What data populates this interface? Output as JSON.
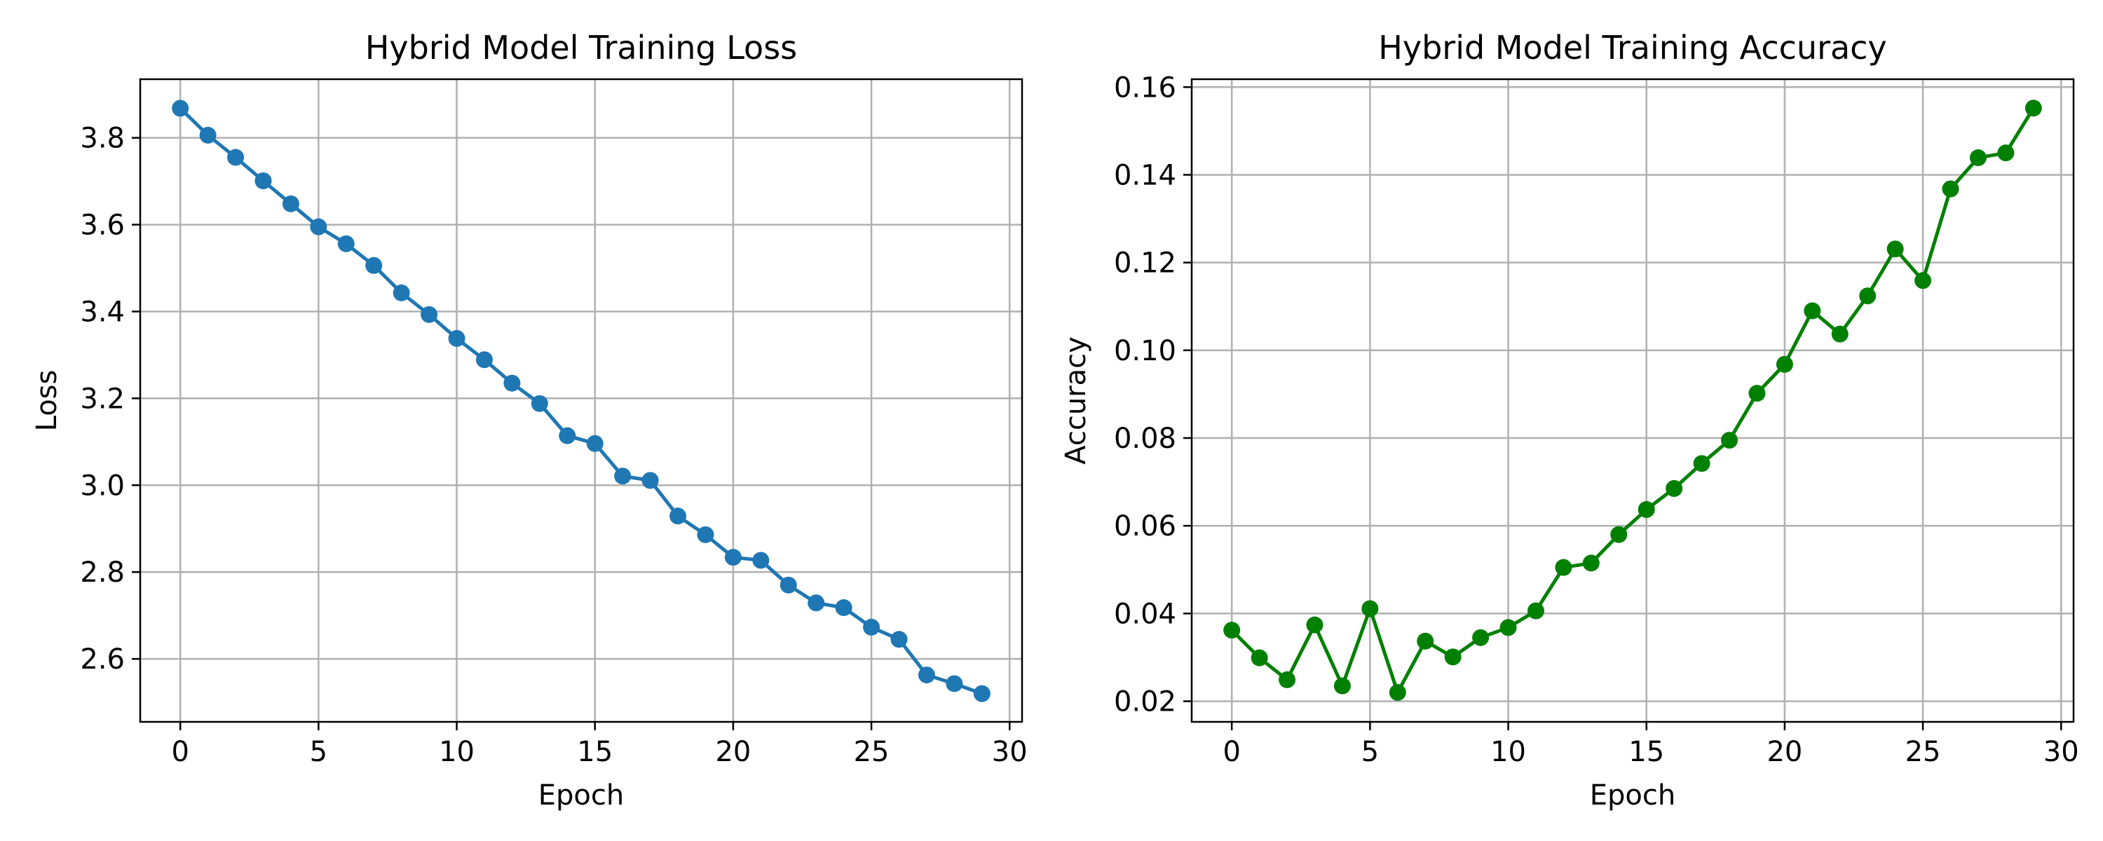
{
  "colors": {
    "loss": "#1f77b4",
    "accuracy": "#008000"
  },
  "chart_data": [
    {
      "type": "line",
      "title": "Hybrid Model Training Loss",
      "xlabel": "Epoch",
      "ylabel": "Loss",
      "xlim": [
        -1.45,
        30.45
      ],
      "ylim": [
        2.455,
        3.935
      ],
      "xticks": [
        0,
        5,
        10,
        15,
        20,
        25,
        30
      ],
      "yticks": [
        2.6,
        2.8,
        3.0,
        3.2,
        3.4,
        3.6,
        3.8
      ],
      "ytick_labels": [
        "2.6",
        "2.8",
        "3.0",
        "3.2",
        "3.4",
        "3.6",
        "3.8"
      ],
      "grid": true,
      "series": [
        {
          "color": "#1f77b4",
          "marker": "circle",
          "x": [
            0,
            1,
            2,
            3,
            4,
            5,
            6,
            7,
            8,
            9,
            10,
            11,
            12,
            13,
            14,
            15,
            16,
            17,
            18,
            19,
            20,
            21,
            22,
            23,
            24,
            25,
            26,
            27,
            28,
            29
          ],
          "values": [
            3.868,
            3.806,
            3.755,
            3.701,
            3.648,
            3.595,
            3.556,
            3.506,
            3.443,
            3.393,
            3.338,
            3.289,
            3.235,
            3.188,
            3.114,
            3.096,
            3.021,
            3.011,
            2.929,
            2.886,
            2.834,
            2.827,
            2.77,
            2.729,
            2.718,
            2.673,
            2.645,
            2.563,
            2.543,
            2.52
          ]
        }
      ]
    },
    {
      "type": "line",
      "title": "Hybrid Model Training Accuracy",
      "xlabel": "Epoch",
      "ylabel": "Accuracy",
      "xlim": [
        -1.45,
        30.45
      ],
      "ylim": [
        0.0153,
        0.1618
      ],
      "xticks": [
        0,
        5,
        10,
        15,
        20,
        25,
        30
      ],
      "yticks": [
        0.02,
        0.04,
        0.06,
        0.08,
        0.1,
        0.12,
        0.14,
        0.16
      ],
      "ytick_labels": [
        "0.02",
        "0.04",
        "0.06",
        "0.08",
        "0.10",
        "0.12",
        "0.14",
        "0.16"
      ],
      "grid": true,
      "series": [
        {
          "color": "#008000",
          "marker": "circle",
          "x": [
            0,
            1,
            2,
            3,
            4,
            5,
            6,
            7,
            8,
            9,
            10,
            11,
            12,
            13,
            14,
            15,
            16,
            17,
            18,
            19,
            20,
            21,
            22,
            23,
            24,
            25,
            26,
            27,
            28,
            29
          ],
          "values": [
            0.0362,
            0.0299,
            0.0249,
            0.0374,
            0.0235,
            0.0411,
            0.022,
            0.0337,
            0.0301,
            0.0345,
            0.0368,
            0.0406,
            0.0505,
            0.0515,
            0.058,
            0.0637,
            0.0685,
            0.0742,
            0.0795,
            0.0902,
            0.0968,
            0.109,
            0.1037,
            0.1124,
            0.1231,
            0.1159,
            0.1368,
            0.1439,
            0.145,
            0.1552
          ]
        }
      ]
    }
  ]
}
